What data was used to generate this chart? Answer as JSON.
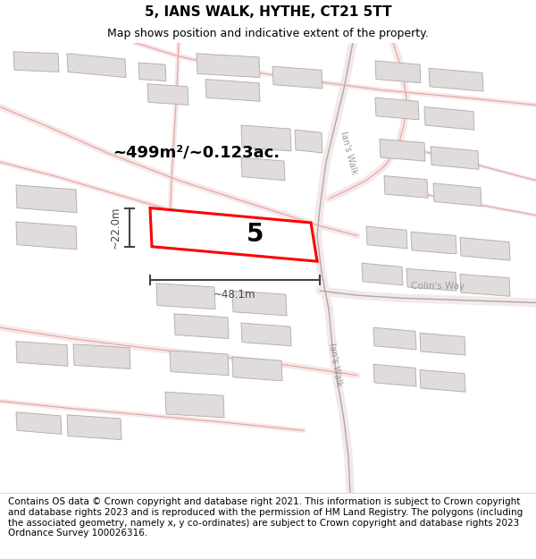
{
  "title": "5, IANS WALK, HYTHE, CT21 5TT",
  "subtitle": "Map shows position and indicative extent of the property.",
  "footer": "Contains OS data © Crown copyright and database right 2021. This information is subject to Crown copyright and database rights 2023 and is reproduced with the permission of HM Land Registry. The polygons (including the associated geometry, namely x, y co-ordinates) are subject to Crown copyright and database rights 2023 Ordnance Survey 100026316.",
  "map_bg": "#f9f6f6",
  "road_line_color": "#e8a0a0",
  "road_fill_color": "#f5e8e8",
  "building_fill": "#e0dcdc",
  "building_outline": "#b8b0b0",
  "road_gray": "#aaaaaa",
  "highlight_fill": "#ffffff",
  "highlight_outline": "#ff0000",
  "dim_color": "#444444",
  "road_label_color": "#999999",
  "property_label": "5",
  "area_text": "~499m²/~0.123ac.",
  "dim_width": "~48.1m",
  "dim_height": "~22.0m",
  "title_fontsize": 11,
  "subtitle_fontsize": 9,
  "footer_fontsize": 7.5
}
